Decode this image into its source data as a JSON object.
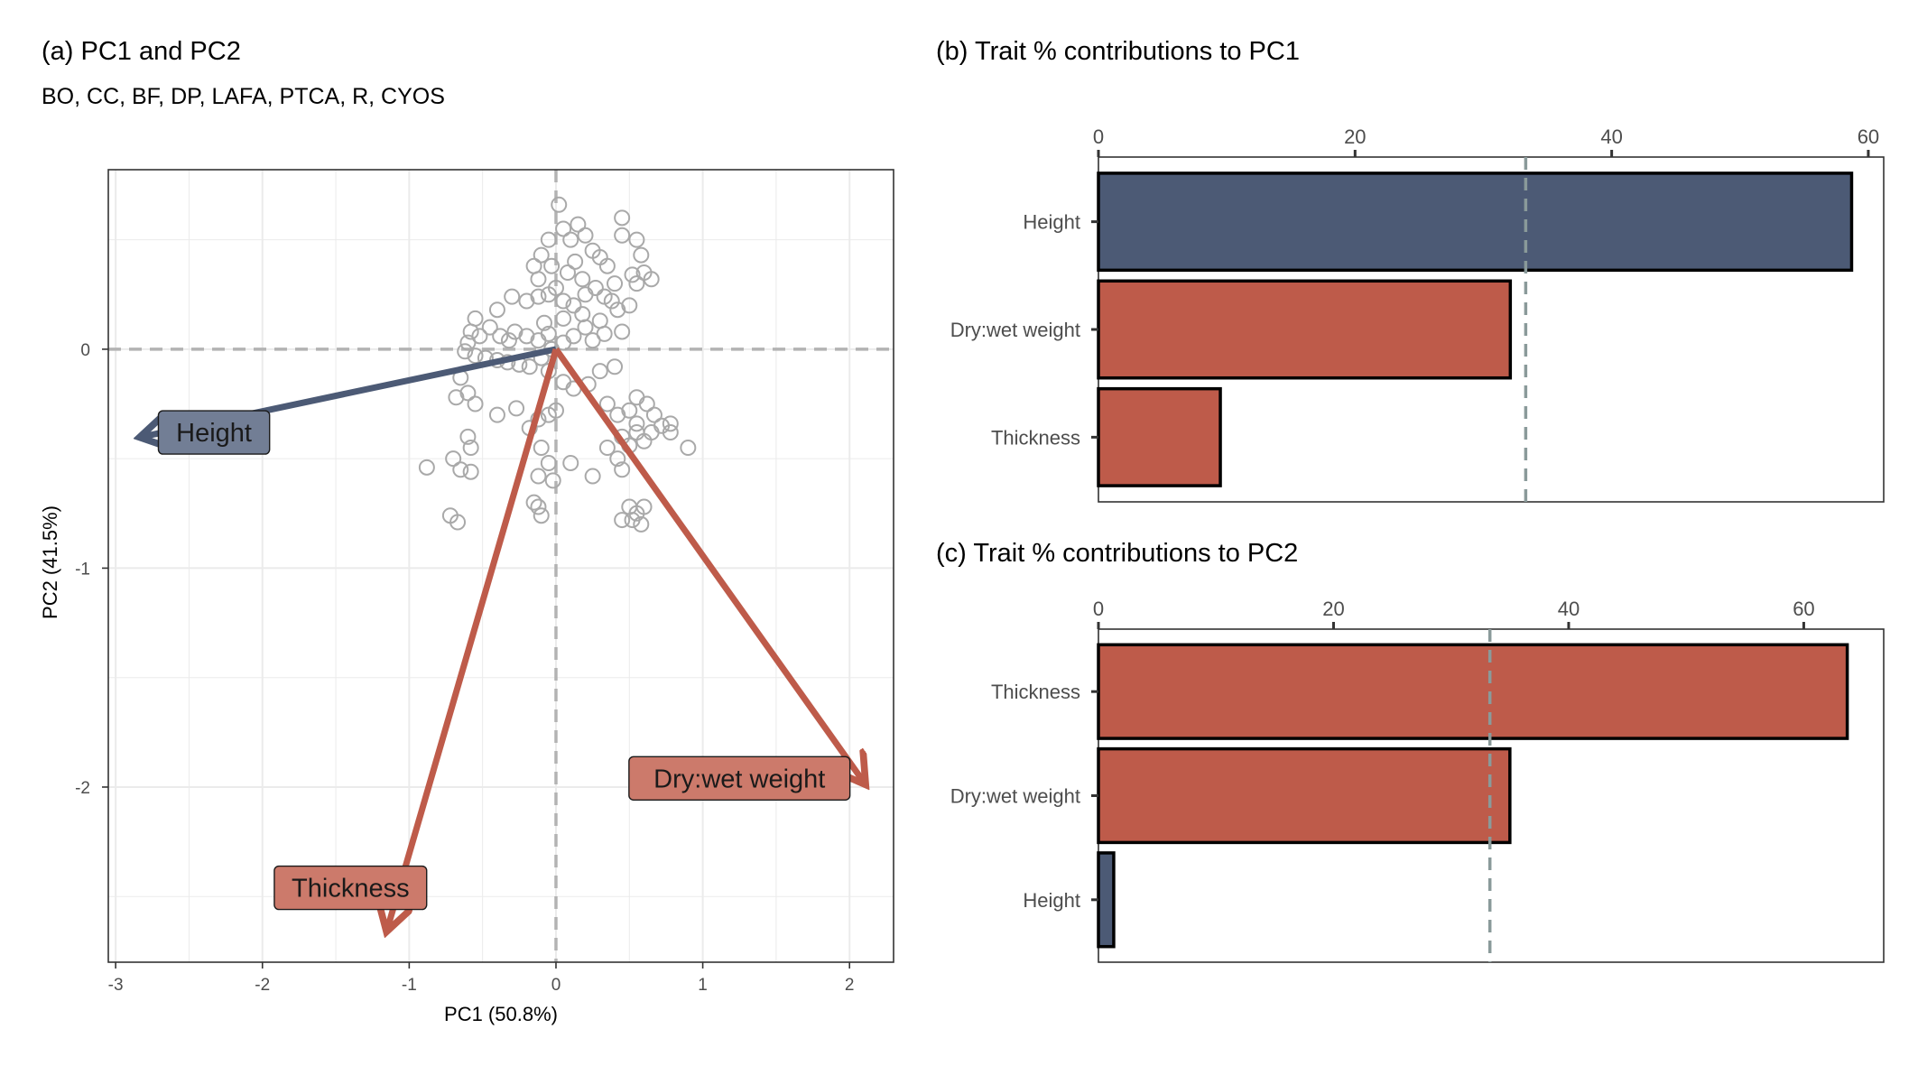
{
  "colors": {
    "height": "#4c5a75",
    "red": "#be5b4a",
    "height_label_fill": "#727e95",
    "red_label_fill": "#cc7a6b",
    "points": "#a9a9a9",
    "grid": "#ebebeb",
    "dashed_zero": "#b3b3b3",
    "ref_line": "#8a9a9a"
  },
  "panel_a": {
    "title": "(a) PC1 and PC2",
    "subtitle": "BO, CC, BF, DP, LAFA, PTCA, R, CYOS"
  },
  "panel_b": {
    "title": "(b) Trait % contributions to PC1"
  },
  "panel_c": {
    "title": "(c) Trait % contributions to PC2"
  },
  "chart_data": [
    {
      "type": "scatter",
      "xlabel": "PC1 (50.8%)",
      "ylabel": "PC2 (41.5%)",
      "xlim": [
        -3.05,
        2.3
      ],
      "ylim": [
        -2.8,
        0.82
      ],
      "xticks": [
        -3,
        -2,
        -1,
        0,
        1,
        2
      ],
      "yticks": [
        0,
        -1,
        -2
      ],
      "zero_lines": "dashed",
      "points": [
        [
          0.02,
          0.66
        ],
        [
          0.05,
          0.55
        ],
        [
          0.1,
          0.5
        ],
        [
          0.15,
          0.57
        ],
        [
          0.2,
          0.52
        ],
        [
          0.25,
          0.45
        ],
        [
          -0.05,
          0.5
        ],
        [
          -0.1,
          0.43
        ],
        [
          -0.03,
          0.38
        ],
        [
          0.08,
          0.35
        ],
        [
          0.13,
          0.4
        ],
        [
          0.18,
          0.32
        ],
        [
          -0.15,
          0.38
        ],
        [
          -0.12,
          0.32
        ],
        [
          0.3,
          0.42
        ],
        [
          0.35,
          0.38
        ],
        [
          0.45,
          0.52
        ],
        [
          0.45,
          0.6
        ],
        [
          0.55,
          0.5
        ],
        [
          0.58,
          0.43
        ],
        [
          0.4,
          0.3
        ],
        [
          0.52,
          0.34
        ],
        [
          0.55,
          0.3
        ],
        [
          0.6,
          0.35
        ],
        [
          0.65,
          0.32
        ],
        [
          0.0,
          0.28
        ],
        [
          -0.05,
          0.25
        ],
        [
          0.05,
          0.22
        ],
        [
          0.12,
          0.2
        ],
        [
          0.2,
          0.25
        ],
        [
          0.27,
          0.28
        ],
        [
          0.33,
          0.24
        ],
        [
          0.38,
          0.22
        ],
        [
          0.42,
          0.18
        ],
        [
          0.5,
          0.2
        ],
        [
          -0.12,
          0.24
        ],
        [
          -0.2,
          0.22
        ],
        [
          -0.3,
          0.24
        ],
        [
          -0.4,
          0.18
        ],
        [
          -0.55,
          0.14
        ],
        [
          -0.58,
          0.08
        ],
        [
          -0.52,
          0.06
        ],
        [
          -0.45,
          0.1
        ],
        [
          -0.38,
          0.06
        ],
        [
          -0.32,
          0.04
        ],
        [
          -0.28,
          0.08
        ],
        [
          -0.2,
          0.06
        ],
        [
          -0.12,
          0.04
        ],
        [
          -0.05,
          0.07
        ],
        [
          -0.6,
          0.03
        ],
        [
          -0.62,
          -0.01
        ],
        [
          -0.55,
          -0.03
        ],
        [
          -0.48,
          -0.04
        ],
        [
          -0.4,
          -0.05
        ],
        [
          -0.33,
          -0.06
        ],
        [
          -0.25,
          -0.07
        ],
        [
          -0.18,
          -0.08
        ],
        [
          -0.1,
          -0.04
        ],
        [
          -0.03,
          0.0
        ],
        [
          0.05,
          0.03
        ],
        [
          0.12,
          0.06
        ],
        [
          0.2,
          0.1
        ],
        [
          0.3,
          0.13
        ],
        [
          0.05,
          0.14
        ],
        [
          -0.08,
          0.12
        ],
        [
          0.18,
          0.16
        ],
        [
          0.25,
          0.04
        ],
        [
          0.33,
          0.07
        ],
        [
          0.45,
          0.08
        ],
        [
          0.4,
          -0.08
        ],
        [
          0.3,
          -0.1
        ],
        [
          0.22,
          -0.16
        ],
        [
          0.12,
          -0.18
        ],
        [
          0.05,
          -0.15
        ],
        [
          -0.05,
          -0.1
        ],
        [
          -0.65,
          -0.13
        ],
        [
          -0.6,
          -0.2
        ],
        [
          -0.68,
          -0.22
        ],
        [
          -0.55,
          -0.25
        ],
        [
          -0.4,
          -0.3
        ],
        [
          -0.27,
          -0.27
        ],
        [
          -0.18,
          -0.36
        ],
        [
          -0.12,
          -0.32
        ],
        [
          -0.05,
          -0.3
        ],
        [
          0.0,
          -0.28
        ],
        [
          -0.6,
          -0.4
        ],
        [
          -0.58,
          -0.45
        ],
        [
          -0.7,
          -0.5
        ],
        [
          -0.65,
          -0.55
        ],
        [
          -0.58,
          -0.56
        ],
        [
          -0.88,
          -0.54
        ],
        [
          -0.1,
          -0.45
        ],
        [
          -0.05,
          -0.52
        ],
        [
          0.1,
          -0.52
        ],
        [
          -0.12,
          -0.58
        ],
        [
          -0.02,
          -0.6
        ],
        [
          -0.15,
          -0.7
        ],
        [
          -0.12,
          -0.72
        ],
        [
          -0.1,
          -0.76
        ],
        [
          -0.72,
          -0.76
        ],
        [
          -0.67,
          -0.79
        ],
        [
          0.35,
          -0.45
        ],
        [
          0.45,
          -0.4
        ],
        [
          0.42,
          -0.5
        ],
        [
          0.5,
          -0.44
        ],
        [
          0.55,
          -0.38
        ],
        [
          0.6,
          -0.42
        ],
        [
          0.35,
          -0.25
        ],
        [
          0.42,
          -0.3
        ],
        [
          0.5,
          -0.28
        ],
        [
          0.55,
          -0.22
        ],
        [
          0.62,
          -0.25
        ],
        [
          0.67,
          -0.3
        ],
        [
          0.55,
          -0.34
        ],
        [
          0.65,
          -0.38
        ],
        [
          0.72,
          -0.35
        ],
        [
          0.78,
          -0.34
        ],
        [
          0.78,
          -0.38
        ],
        [
          0.45,
          -0.55
        ],
        [
          0.5,
          -0.72
        ],
        [
          0.55,
          -0.75
        ],
        [
          0.6,
          -0.72
        ],
        [
          0.52,
          -0.78
        ],
        [
          0.45,
          -0.78
        ],
        [
          0.58,
          -0.8
        ],
        [
          0.9,
          -0.45
        ],
        [
          0.25,
          -0.58
        ]
      ],
      "vectors": [
        {
          "name": "Height",
          "x": -2.82,
          "y": -0.4,
          "color": "height"
        },
        {
          "name": "Thickness",
          "x": -1.15,
          "y": -2.65,
          "color": "red"
        },
        {
          "name": "Dry:wet weight",
          "x": 2.1,
          "y": -1.98,
          "color": "red"
        }
      ]
    },
    {
      "type": "bar",
      "orientation": "horizontal",
      "categories": [
        "Height",
        "Dry:wet weight",
        "Thickness"
      ],
      "values": [
        58.7,
        32.1,
        9.5
      ],
      "series_colors": [
        "height",
        "red",
        "red"
      ],
      "xlim": [
        0,
        61.2
      ],
      "xticks": [
        0,
        20,
        40,
        60
      ],
      "reference_line": 33.3,
      "axis_position": "top"
    },
    {
      "type": "bar",
      "orientation": "horizontal",
      "categories": [
        "Thickness",
        "Dry:wet weight",
        "Height"
      ],
      "values": [
        63.7,
        35.0,
        1.3
      ],
      "series_colors": [
        "red",
        "red",
        "height"
      ],
      "xlim": [
        0,
        66.8
      ],
      "xticks": [
        0,
        20,
        40,
        60
      ],
      "reference_line": 33.3,
      "axis_position": "top"
    }
  ]
}
